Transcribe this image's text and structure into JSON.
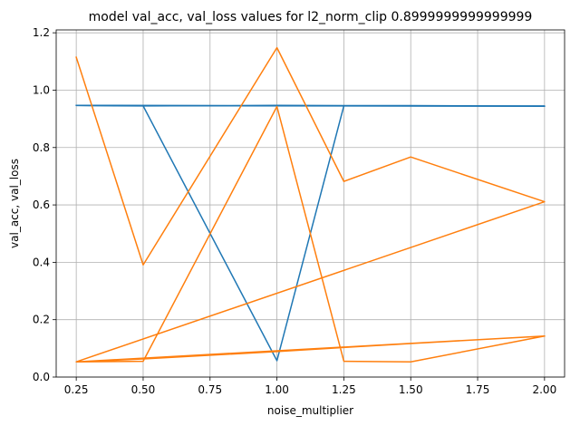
{
  "chart_data": {
    "type": "line",
    "title": "model val_acc, val_loss values for l2_norm_clip 0.8999999999999999",
    "xlabel": "noise_multiplier",
    "ylabel": "val_acc, val_loss",
    "xlim": [
      0.175,
      2.075
    ],
    "ylim": [
      0.0,
      1.21
    ],
    "xticks": [
      0.25,
      0.5,
      0.75,
      1.0,
      1.25,
      1.5,
      1.75,
      2.0
    ],
    "xtick_labels": [
      "0.25",
      "0.50",
      "0.75",
      "1.00",
      "1.25",
      "1.50",
      "1.75",
      "2.00"
    ],
    "yticks": [
      0.0,
      0.2,
      0.4,
      0.6,
      0.8,
      1.0,
      1.2
    ],
    "ytick_labels": [
      "0.0",
      "0.2",
      "0.4",
      "0.6",
      "0.8",
      "1.0",
      "1.2"
    ],
    "grid": true,
    "series": [
      {
        "color": "#1f77b4",
        "x": [
          0.25,
          0.5,
          1.0,
          1.25,
          1.5,
          2.0,
          0.25,
          0.5,
          1.0,
          1.25,
          1.5,
          2.0,
          0.25,
          0.5,
          1.0,
          1.25,
          1.5,
          2.0
        ],
        "y": [
          0.947,
          0.945,
          0.057,
          0.945,
          0.945,
          0.945,
          0.947,
          0.946,
          0.946,
          0.946,
          0.946,
          0.944,
          0.946,
          0.945,
          0.947,
          0.946,
          0.945,
          0.944
        ]
      },
      {
        "color": "#ff7f0e",
        "x": [
          0.25,
          0.5,
          1.0,
          1.25,
          1.5,
          2.0,
          0.25,
          0.5,
          1.0,
          1.25,
          1.5,
          2.0,
          0.25,
          0.5,
          1.0,
          1.25,
          1.5,
          2.0
        ],
        "y": [
          1.115,
          0.391,
          1.148,
          0.682,
          0.767,
          0.611,
          0.053,
          0.055,
          0.943,
          0.055,
          0.053,
          0.143,
          0.053,
          0.063,
          0.089,
          0.103,
          0.117,
          0.143
        ]
      }
    ]
  }
}
